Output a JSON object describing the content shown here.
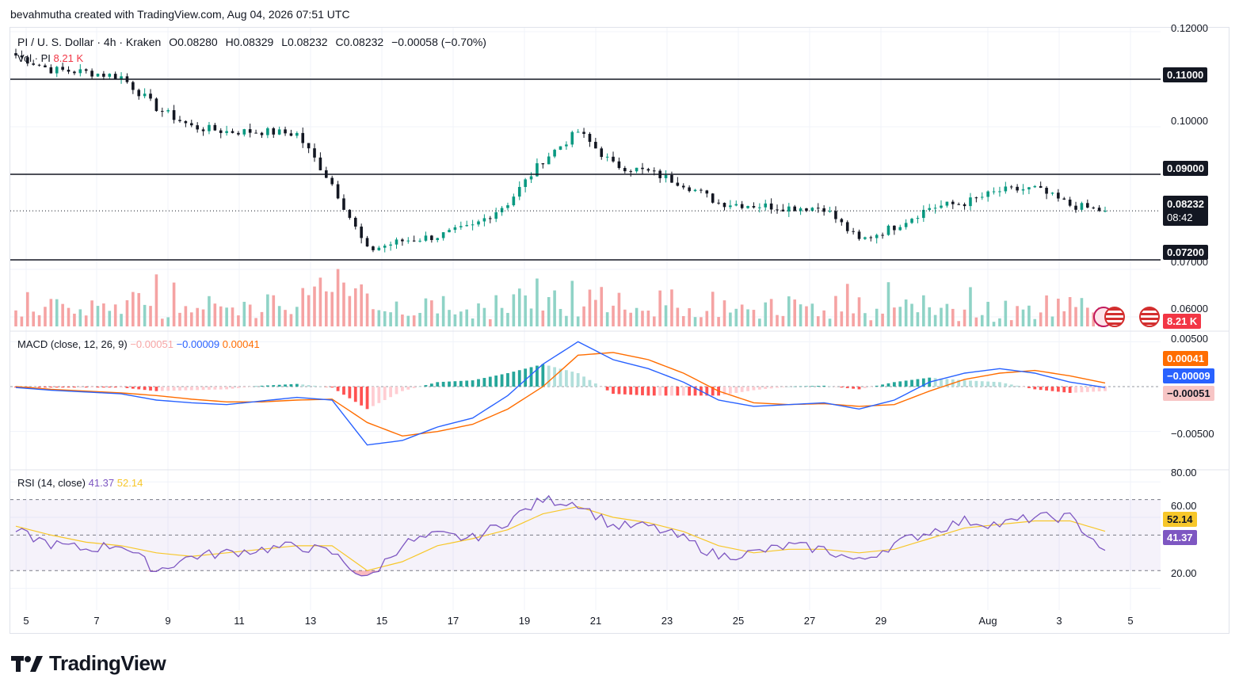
{
  "header": {
    "attribution": "bevahmutha created with TradingView.com, Aug 04, 2026 07:51 UTC"
  },
  "legend": {
    "symbol": "PI / U. S. Dollar · 4h · Kraken",
    "open": "O0.08280",
    "high": "H0.08329",
    "low": "L0.08232",
    "close": "C0.08232",
    "change": "−0.00058 (−0.70%)",
    "volume_label": "Vol · PI",
    "volume_value": "8.21 K"
  },
  "macd_legend": {
    "label": "MACD (close, 12, 26, 9)",
    "hist": "−0.00051",
    "macd": "−0.00009",
    "signal": "0.00041"
  },
  "rsi_legend": {
    "label": "RSI (14, close)",
    "rsi": "41.37",
    "ma": "52.14"
  },
  "price_axis": {
    "ticks": [
      "0.12000",
      "0.10000",
      "0.07000",
      "0.06000"
    ],
    "hlines": [
      "0.11000",
      "0.09000",
      "0.07200"
    ],
    "last_price": "0.08232",
    "countdown": "08:42",
    "volume_box": "8.21 K"
  },
  "macd_axis": {
    "ticks": [
      "0.00500",
      "−0.00500"
    ],
    "signal_box": "0.00041",
    "macd_box": "−0.00009",
    "hist_box": "−0.00051"
  },
  "rsi_axis": {
    "ticks": [
      "80.00",
      "60.00",
      "20.00"
    ],
    "ma_box": "52.14",
    "rsi_box": "41.37"
  },
  "date_axis": [
    "5",
    "7",
    "9",
    "11",
    "13",
    "15",
    "17",
    "19",
    "21",
    "23",
    "25",
    "27",
    "29",
    "Aug",
    "3",
    "5"
  ],
  "colors": {
    "up": "#089981",
    "down": "#131722",
    "vol_up": "#8fd3c6",
    "vol_down": "#f5a3a3",
    "macd_line": "#2962ff",
    "signal_line": "#ff6d00",
    "rsi_line": "#7e57c2",
    "rsi_ma": "#f7c72a",
    "accent_red": "#f23645"
  },
  "logo": {
    "text": "TradingView"
  },
  "chart_data": [
    {
      "type": "candlestick",
      "title": "PI / U. S. Dollar · 4h · Kraken",
      "x": [
        "Jul 4",
        "Jul 5",
        "Jul 6",
        "Jul 7",
        "Jul 8",
        "Jul 9",
        "Jul 10",
        "Jul 11",
        "Jul 12",
        "Jul 13",
        "Jul 14",
        "Jul 15",
        "Jul 16",
        "Jul 17",
        "Jul 18",
        "Jul 19",
        "Jul 20",
        "Jul 21",
        "Jul 22",
        "Jul 23",
        "Jul 24",
        "Jul 25",
        "Jul 26",
        "Jul 27",
        "Jul 28",
        "Jul 29",
        "Jul 30",
        "Jul 31",
        "Aug 1",
        "Aug 2",
        "Aug 3",
        "Aug 4"
      ],
      "close": [
        0.115,
        0.112,
        0.1115,
        0.1105,
        0.104,
        0.1,
        0.099,
        0.099,
        0.0985,
        0.088,
        0.074,
        0.076,
        0.077,
        0.079,
        0.084,
        0.093,
        0.099,
        0.092,
        0.0905,
        0.088,
        0.084,
        0.0835,
        0.083,
        0.083,
        0.076,
        0.079,
        0.083,
        0.084,
        0.0865,
        0.087,
        0.0835,
        0.0823
      ],
      "horizontal_levels": [
        0.11,
        0.09,
        0.072
      ],
      "last_price": 0.08232,
      "ylim": [
        0.058,
        0.12
      ]
    },
    {
      "type": "bar",
      "title": "Vol · PI",
      "last_value": "8.21 K"
    },
    {
      "type": "line",
      "title": "MACD (close, 12, 26, 9)",
      "series": [
        {
          "name": "MACD",
          "values": [
            -0.0001,
            -0.0004,
            -0.0006,
            -0.0008,
            -0.0015,
            -0.0018,
            -0.002,
            -0.0016,
            -0.0012,
            -0.0015,
            -0.0065,
            -0.006,
            -0.0045,
            -0.0035,
            -0.001,
            0.0025,
            0.005,
            0.003,
            0.002,
            0.0005,
            -0.0015,
            -0.0022,
            -0.002,
            -0.0018,
            -0.0025,
            -0.0015,
            0.0005,
            0.0015,
            0.002,
            0.0015,
            0.0005,
            -0.0001
          ]
        },
        {
          "name": "Signal",
          "values": [
            0.0,
            -0.0003,
            -0.0005,
            -0.0007,
            -0.001,
            -0.0014,
            -0.0017,
            -0.0017,
            -0.0015,
            -0.0014,
            -0.004,
            -0.0055,
            -0.005,
            -0.0042,
            -0.0025,
            0.0,
            0.0035,
            0.0038,
            0.003,
            0.0015,
            -0.0005,
            -0.0018,
            -0.002,
            -0.0019,
            -0.0022,
            -0.002,
            -0.0005,
            0.0008,
            0.0015,
            0.0018,
            0.0012,
            0.0004
          ]
        }
      ],
      "last_values": {
        "hist": -0.00051,
        "macd": -9e-05,
        "signal": 0.00041
      },
      "ylim": [
        -0.009,
        0.006
      ]
    },
    {
      "type": "line",
      "title": "RSI (14, close)",
      "series": [
        {
          "name": "RSI",
          "values": [
            52,
            45,
            42,
            45,
            30,
            38,
            40,
            42,
            44,
            40,
            25,
            45,
            50,
            48,
            58,
            70,
            68,
            55,
            55,
            48,
            38,
            40,
            44,
            42,
            35,
            45,
            52,
            58,
            56,
            60,
            60,
            41.37
          ]
        },
        {
          "name": "MA",
          "values": [
            55,
            50,
            46,
            44,
            40,
            38,
            40,
            42,
            44,
            44,
            30,
            35,
            44,
            48,
            53,
            62,
            66,
            60,
            57,
            52,
            44,
            40,
            42,
            42,
            40,
            42,
            48,
            54,
            56,
            58,
            58,
            52.14
          ]
        }
      ],
      "bands": [
        70,
        50,
        30
      ],
      "ylim": [
        10,
        85
      ]
    }
  ]
}
